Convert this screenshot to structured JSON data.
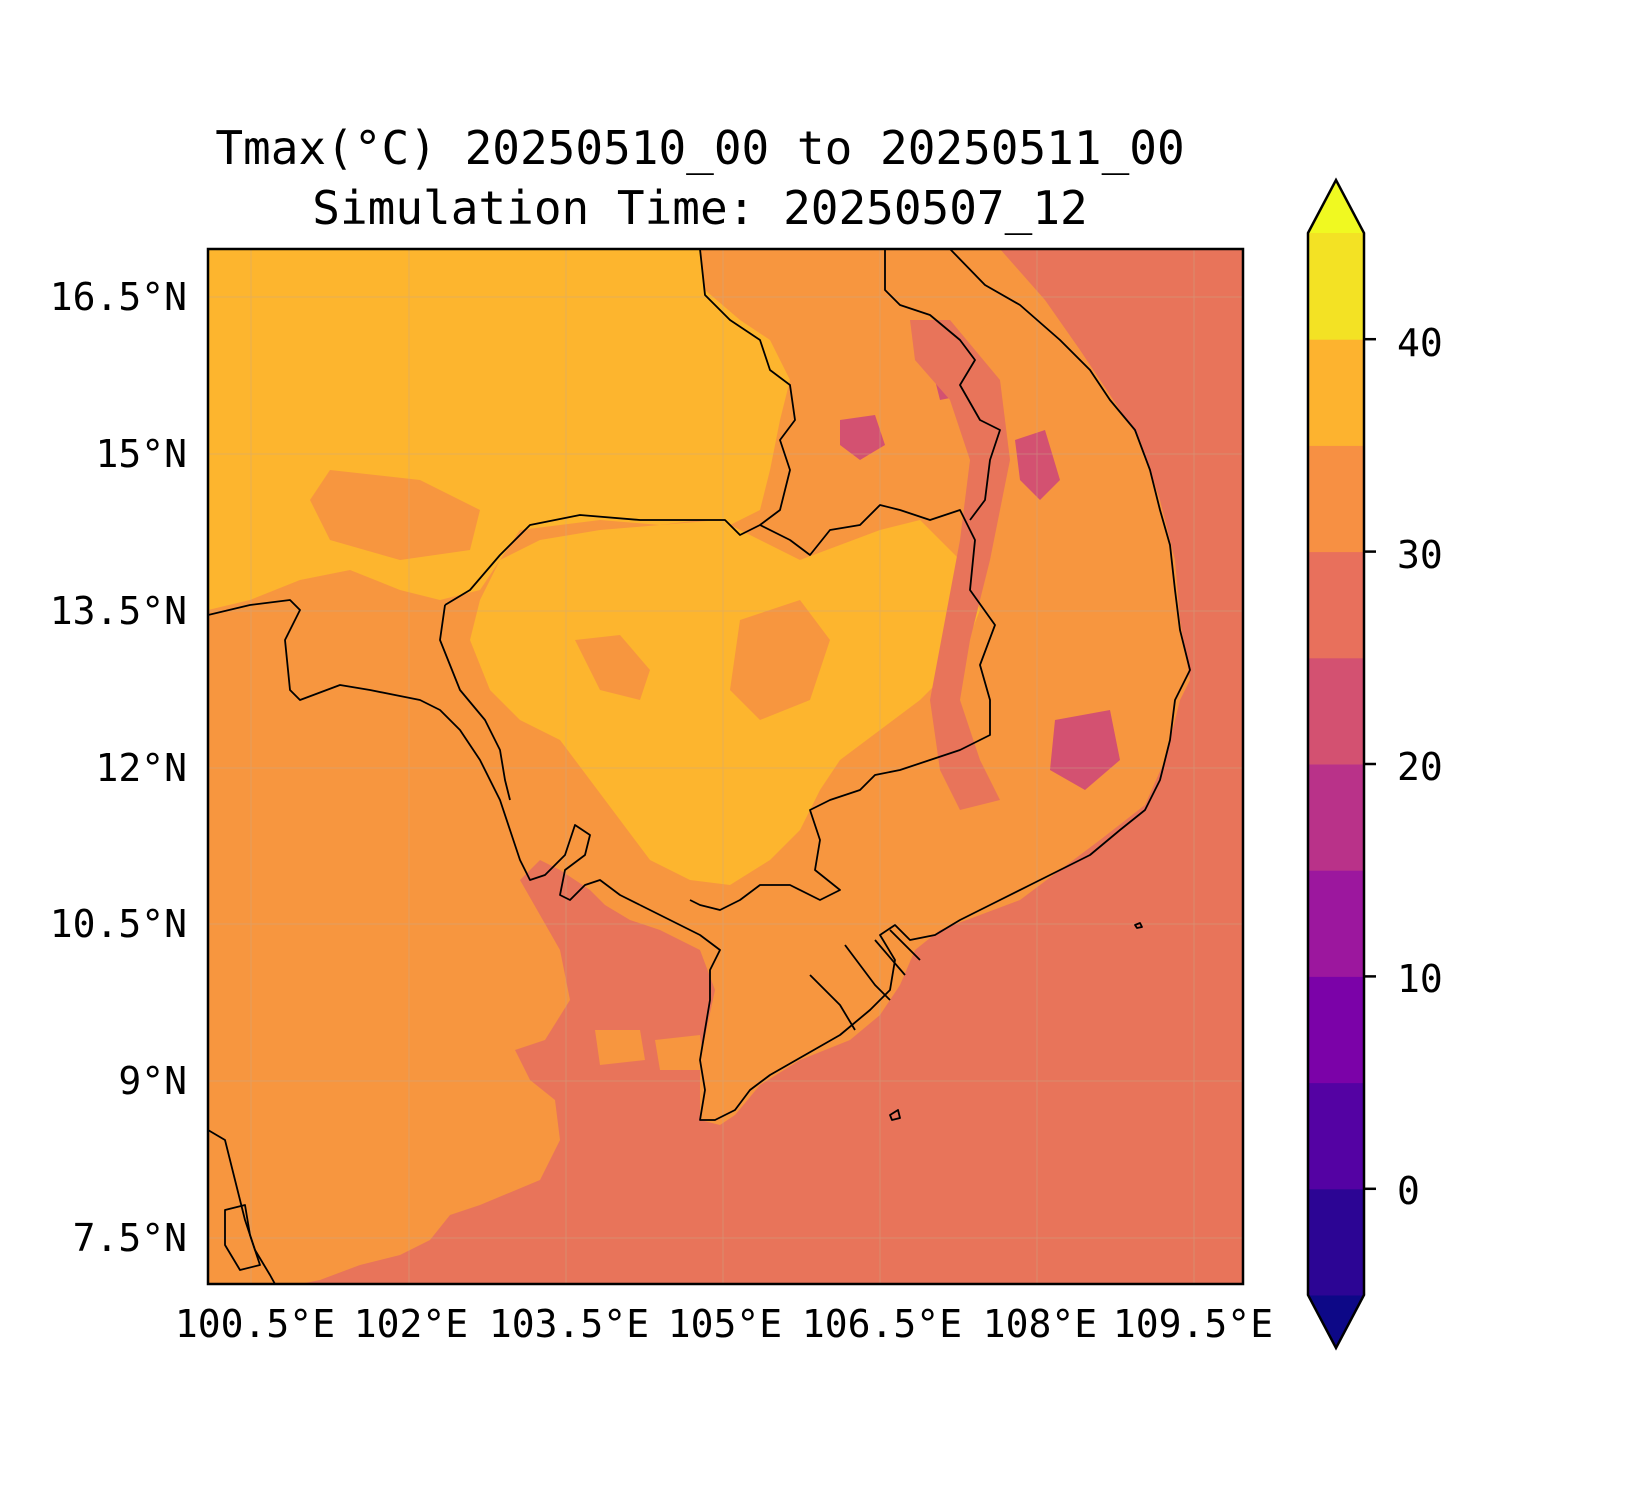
{
  "title": {
    "line1": "Tmax(°C) 20250510_00 to 20250511_00",
    "line2": "Simulation Time: 20250507_12"
  },
  "map": {
    "region": "Cambodia and surrounding Indochina",
    "lat_range": [
      7.0,
      16.9
    ],
    "lon_range": [
      99.8,
      109.7
    ],
    "lat_ticks": [
      "16.5°N",
      "15°N",
      "13.5°N",
      "12°N",
      "10.5°N",
      "9°N",
      "7.5°N"
    ],
    "lon_ticks": [
      "100.5°E",
      "102°E",
      "103.5°E",
      "105°E",
      "106.5°E",
      "108°E",
      "109.5°E"
    ],
    "ocean_value_range": "25-30",
    "gridlines": true
  },
  "colorbar": {
    "ticks": [
      "40",
      "30",
      "20",
      "10",
      "0"
    ],
    "levels": [
      -5,
      0,
      5,
      10,
      15,
      20,
      25,
      30,
      35,
      40,
      45
    ],
    "colors": [
      "#0d0887",
      "#2c0594",
      "#5402a3",
      "#7b02a8",
      "#9c179e",
      "#b93289",
      "#d35171",
      "#e8705c",
      "#f79043",
      "#fdb32f",
      "#f3e224",
      "#f0f921"
    ],
    "extend": "both",
    "palette": "plasma"
  }
}
